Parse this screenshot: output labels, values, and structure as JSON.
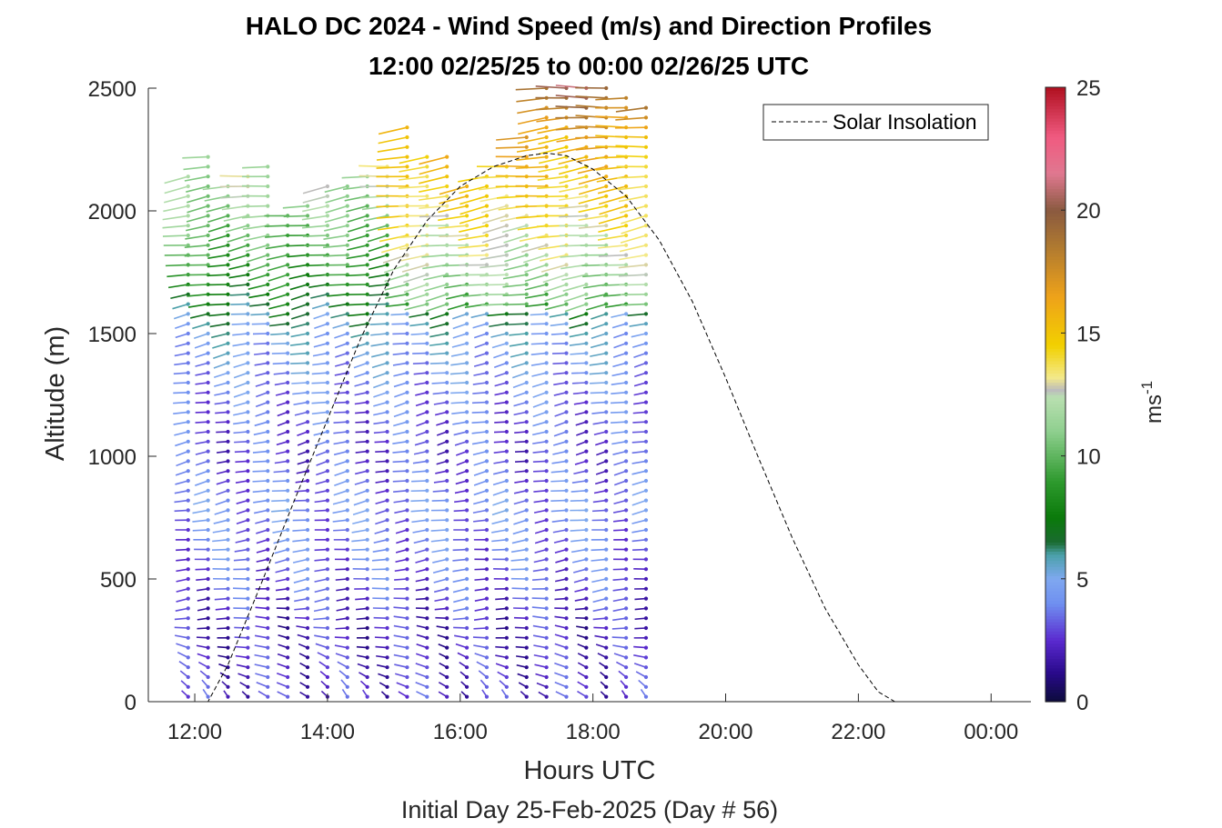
{
  "chart_data": {
    "type": "scatter",
    "subtype": "wind-barb-profile",
    "title": "HALO DC 2024 - Wind Speed (m/s) and Direction Profiles",
    "subtitle": "12:00 02/25/25 to 00:00 02/26/25  UTC",
    "xlabel": "Hours UTC",
    "xlabel2": "Initial Day 25-Feb-2025 (Day # 56)",
    "ylabel": "Altitude (m)",
    "x_ticks": [
      12,
      14,
      16,
      18,
      20,
      22,
      24
    ],
    "x_tick_labels": [
      "12:00",
      "14:00",
      "16:00",
      "18:00",
      "20:00",
      "22:00",
      "00:00"
    ],
    "y_ticks": [
      0,
      500,
      1000,
      1500,
      2000,
      2500
    ],
    "y_tick_labels": [
      "0",
      "500",
      "1000",
      "1500",
      "2000",
      "2500"
    ],
    "xlim": [
      11.3,
      24.6
    ],
    "ylim": [
      0,
      2500
    ],
    "colorbar": {
      "label": "ms",
      "label_exponent": "-1",
      "range": [
        0,
        25
      ],
      "ticks": [
        0,
        5,
        10,
        15,
        20,
        25
      ],
      "tick_labels": [
        "0",
        "5",
        "10",
        "15",
        "20",
        "25"
      ],
      "stops": [
        {
          "v": 0,
          "c": "#0b0b3a"
        },
        {
          "v": 1.2,
          "c": "#2a0a8c"
        },
        {
          "v": 2.5,
          "c": "#5a2acf"
        },
        {
          "v": 4,
          "c": "#6f8ff0"
        },
        {
          "v": 5,
          "c": "#7fa8f0"
        },
        {
          "v": 6,
          "c": "#4aa0a8"
        },
        {
          "v": 6.5,
          "c": "#1a6a30"
        },
        {
          "v": 7.5,
          "c": "#0a7a0a"
        },
        {
          "v": 9,
          "c": "#2f9a2f"
        },
        {
          "v": 11,
          "c": "#8ecf8e"
        },
        {
          "v": 12.4,
          "c": "#b9dfb0"
        },
        {
          "v": 12.7,
          "c": "#bcbcbc"
        },
        {
          "v": 13.2,
          "c": "#f3e98a"
        },
        {
          "v": 14.5,
          "c": "#f2d000"
        },
        {
          "v": 16.5,
          "c": "#eea21a"
        },
        {
          "v": 18.5,
          "c": "#b07a30"
        },
        {
          "v": 20,
          "c": "#8a5a40"
        },
        {
          "v": 21.5,
          "c": "#e07890"
        },
        {
          "v": 23,
          "c": "#f05a80"
        },
        {
          "v": 25,
          "c": "#b01020"
        }
      ]
    },
    "legend": {
      "entries": [
        "Solar Insolation"
      ],
      "placement": "top-right"
    },
    "solar_insolation": {
      "style": "dashed",
      "color": "#000000",
      "points": [
        [
          11.3,
          0
        ],
        [
          12.2,
          0
        ],
        [
          12.5,
          150
        ],
        [
          13.0,
          480
        ],
        [
          13.5,
          820
        ],
        [
          14.0,
          1150
        ],
        [
          14.5,
          1480
        ],
        [
          15.0,
          1760
        ],
        [
          15.5,
          1960
        ],
        [
          16.0,
          2100
        ],
        [
          16.5,
          2180
        ],
        [
          17.0,
          2225
        ],
        [
          17.3,
          2235
        ],
        [
          17.6,
          2225
        ],
        [
          18.0,
          2170
        ],
        [
          18.5,
          2060
        ],
        [
          19.0,
          1880
        ],
        [
          19.5,
          1630
        ],
        [
          20.0,
          1320
        ],
        [
          20.5,
          990
        ],
        [
          21.0,
          670
        ],
        [
          21.5,
          380
        ],
        [
          22.0,
          150
        ],
        [
          22.3,
          40
        ],
        [
          22.55,
          0
        ],
        [
          24.6,
          0
        ]
      ]
    },
    "wind_profiles": {
      "times": [
        11.9,
        12.2,
        12.5,
        12.8,
        13.1,
        13.4,
        13.7,
        14.0,
        14.3,
        14.6,
        14.9,
        15.2,
        15.5,
        15.8,
        16.1,
        16.4,
        16.7,
        17.0,
        17.3,
        17.6,
        17.9,
        18.2,
        18.5,
        18.8
      ],
      "altitude_step_m": 40,
      "top_altitude_m": [
        2150,
        2220,
        2100,
        2150,
        2180,
        2000,
        2050,
        2100,
        2120,
        2160,
        2200,
        2350,
        2240,
        2220,
        2100,
        2150,
        2200,
        2300,
        2500,
        2500,
        2500,
        2500,
        2460,
        2450
      ],
      "speed_layers": [
        {
          "alt": 0,
          "speed": 2.5
        },
        {
          "alt": 300,
          "speed": 2.2
        },
        {
          "alt": 500,
          "speed": 3.2
        },
        {
          "alt": 800,
          "speed": 4.0
        },
        {
          "alt": 1000,
          "speed": 2.8
        },
        {
          "alt": 1200,
          "speed": 3.5
        },
        {
          "alt": 1500,
          "speed": 5.0
        },
        {
          "alt": 1700,
          "speed": 8.0
        },
        {
          "alt": 2000,
          "speed": 11.0
        },
        {
          "alt": 2300,
          "speed": 13.0
        },
        {
          "alt": 2500,
          "speed": 17.0
        }
      ],
      "direction_deg_from": [
        {
          "alt": 0,
          "dir": 330
        },
        {
          "alt": 400,
          "dir": 260
        },
        {
          "alt": 1000,
          "dir": 250
        },
        {
          "alt": 2000,
          "dir": 255
        },
        {
          "alt": 2500,
          "dir": 265
        }
      ]
    }
  }
}
